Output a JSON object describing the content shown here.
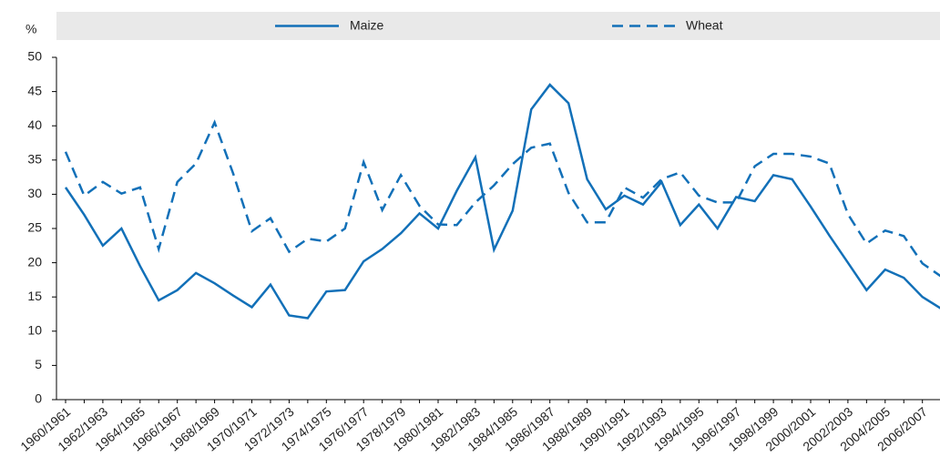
{
  "chart_data": {
    "type": "line",
    "y_unit": "%",
    "categories": [
      "1960/1961",
      null,
      "1962/1963",
      null,
      "1964/1965",
      null,
      "1966/1967",
      null,
      "1968/1969",
      null,
      "1970/1971",
      null,
      "1972/1973",
      null,
      "1974/1975",
      null,
      "1976/1977",
      null,
      "1978/1979",
      null,
      "1980/1981",
      null,
      "1982/1983",
      null,
      "1984/1985",
      null,
      "1986/1987",
      null,
      "1988/1989",
      null,
      "1990/1991",
      null,
      "1992/1993",
      null,
      "1994/1995",
      null,
      "1996/1997",
      null,
      "1998/1999",
      null,
      "2000/2001",
      null,
      "2002/2003",
      null,
      "2004/2005",
      null,
      "2006/2007",
      null
    ],
    "series": [
      {
        "name": "Maize",
        "color": "#1270b8",
        "dash": false,
        "values": [
          31,
          27,
          22.5,
          25,
          19.5,
          14.5,
          16,
          18.5,
          17,
          15.2,
          13.5,
          16.8,
          12.3,
          11.9,
          15.8,
          16,
          20.2,
          22,
          24.3,
          27.2,
          25,
          30.5,
          35.4,
          21.9,
          27.6,
          42.4,
          46,
          43.3,
          32.2,
          27.8,
          29.8,
          28.5,
          31.8,
          25.5,
          28.5,
          25,
          29.6,
          29,
          32.8,
          32.2,
          28.2,
          24,
          20,
          16,
          19,
          17.8,
          15,
          13.3
        ]
      },
      {
        "name": "Wheat",
        "color": "#1270b8",
        "dash": true,
        "values": [
          36.2,
          29.8,
          31.8,
          30.1,
          31,
          22,
          31.8,
          34.5,
          40.5,
          33,
          24.6,
          26.5,
          21.6,
          23.5,
          23.1,
          25,
          34.7,
          27.7,
          32.8,
          28.3,
          25.6,
          25.5,
          28.8,
          31.3,
          34.4,
          36.8,
          37.4,
          30.2,
          25.9,
          25.9,
          31,
          29.5,
          32.2,
          33.2,
          29.8,
          28.8,
          28.8,
          34.1,
          35.9,
          35.9,
          35.5,
          34.5,
          27.1,
          22.8,
          24.7,
          23.9,
          19.9,
          18
        ]
      }
    ],
    "ylim": [
      0,
      50
    ],
    "yticks": [
      0,
      5,
      10,
      15,
      20,
      25,
      30,
      35,
      40,
      45,
      50
    ],
    "grid": false
  }
}
